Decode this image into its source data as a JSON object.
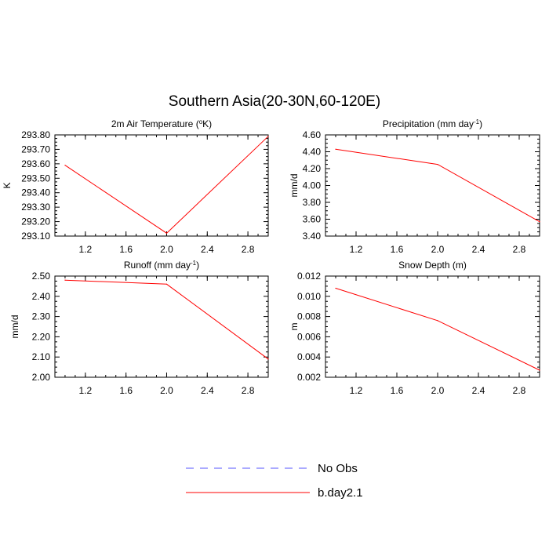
{
  "title": "Southern Asia(20-30N,60-120E)",
  "chart_data": [
    {
      "type": "line",
      "title": "2m Air Temperature",
      "title_unit": "(",
      "title_sup": "o",
      "title_tail": "K)",
      "ylabel": "K",
      "x": [
        1.0,
        2.0,
        3.0
      ],
      "xlim": [
        0.9,
        3.0
      ],
      "xticks": [
        "1.2",
        "1.6",
        "2.0",
        "2.4",
        "2.8"
      ],
      "xtick_values": [
        1.2,
        1.6,
        2.0,
        2.4,
        2.8
      ],
      "ylim": [
        293.1,
        293.8
      ],
      "yticks": [
        "293.10",
        "293.20",
        "293.30",
        "293.40",
        "293.50",
        "293.60",
        "293.70",
        "293.80"
      ],
      "ytick_values": [
        293.1,
        293.2,
        293.3,
        293.4,
        293.5,
        293.6,
        293.7,
        293.8
      ],
      "series": [
        {
          "name": "b.day2.1",
          "values": [
            293.59,
            293.12,
            293.79
          ]
        }
      ]
    },
    {
      "type": "line",
      "title": "Precipitation",
      "title_unit": "(mm day",
      "title_sup": "-1",
      "title_tail": ")",
      "ylabel": "mm/d",
      "x": [
        1.0,
        2.0,
        3.0
      ],
      "xlim": [
        0.9,
        3.0
      ],
      "xticks": [
        "1.2",
        "1.6",
        "2.0",
        "2.4",
        "2.8"
      ],
      "xtick_values": [
        1.2,
        1.6,
        2.0,
        2.4,
        2.8
      ],
      "ylim": [
        3.4,
        4.6
      ],
      "yticks": [
        "3.40",
        "3.60",
        "3.80",
        "4.00",
        "4.20",
        "4.40",
        "4.60"
      ],
      "ytick_values": [
        3.4,
        3.6,
        3.8,
        4.0,
        4.2,
        4.4,
        4.6
      ],
      "series": [
        {
          "name": "b.day2.1",
          "values": [
            4.43,
            4.25,
            3.57
          ]
        }
      ]
    },
    {
      "type": "line",
      "title": "Runoff",
      "title_unit": "(mm day",
      "title_sup": "-1",
      "title_tail": ")",
      "ylabel": "mm/d",
      "x": [
        1.0,
        2.0,
        3.0
      ],
      "xlim": [
        0.9,
        3.0
      ],
      "xticks": [
        "1.2",
        "1.6",
        "2.0",
        "2.4",
        "2.8"
      ],
      "xtick_values": [
        1.2,
        1.6,
        2.0,
        2.4,
        2.8
      ],
      "ylim": [
        2.0,
        2.5
      ],
      "yticks": [
        "2.00",
        "2.10",
        "2.20",
        "2.30",
        "2.40",
        "2.50"
      ],
      "ytick_values": [
        2.0,
        2.1,
        2.2,
        2.3,
        2.4,
        2.5
      ],
      "series": [
        {
          "name": "b.day2.1",
          "values": [
            2.48,
            2.46,
            2.09
          ]
        }
      ]
    },
    {
      "type": "line",
      "title": "Snow Depth",
      "title_unit": "(m)",
      "title_sup": "",
      "title_tail": "",
      "ylabel": "m",
      "x": [
        1.0,
        2.0,
        3.0
      ],
      "xlim": [
        0.9,
        3.0
      ],
      "xticks": [
        "1.2",
        "1.6",
        "2.0",
        "2.4",
        "2.8"
      ],
      "xtick_values": [
        1.2,
        1.6,
        2.0,
        2.4,
        2.8
      ],
      "ylim": [
        0.002,
        0.012
      ],
      "yticks": [
        "0.002",
        "0.004",
        "0.006",
        "0.008",
        "0.010",
        "0.012"
      ],
      "ytick_values": [
        0.002,
        0.004,
        0.006,
        0.008,
        0.01,
        0.012
      ],
      "series": [
        {
          "name": "b.day2.1",
          "values": [
            0.0108,
            0.0076,
            0.0027
          ]
        }
      ]
    }
  ],
  "legend": {
    "placement": "bottom-center",
    "items": [
      {
        "label": "No Obs",
        "color": "#5555ff",
        "style": "dashed"
      },
      {
        "label": "b.day2.1",
        "color": "#ff0000",
        "style": "solid"
      }
    ]
  }
}
